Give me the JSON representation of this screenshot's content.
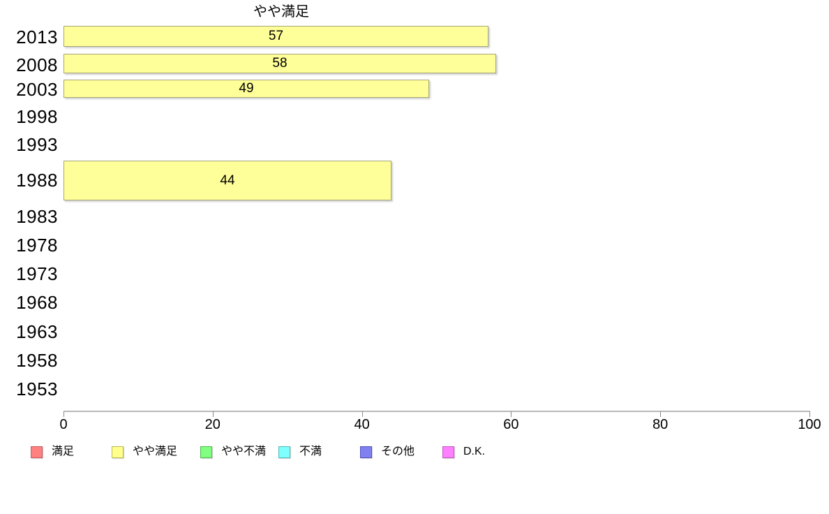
{
  "chart_data": {
    "type": "bar",
    "orientation": "horizontal",
    "title": "やや満足",
    "series_name": "やや満足",
    "categories": [
      "2013",
      "2008",
      "2003",
      "1998",
      "1993",
      "1988",
      "1983",
      "1978",
      "1973",
      "1968",
      "1963",
      "1958",
      "1953"
    ],
    "values": [
      57,
      58,
      49,
      null,
      null,
      44,
      null,
      null,
      null,
      null,
      null,
      null,
      null
    ],
    "bar_labels": [
      "57",
      "58",
      "49",
      null,
      null,
      "44",
      null,
      null,
      null,
      null,
      null,
      null,
      null
    ],
    "xlim": [
      0,
      100
    ],
    "x_ticks": [
      "0",
      "20",
      "40",
      "60",
      "80",
      "100"
    ],
    "x_tick_values": [
      0,
      20,
      40,
      60,
      80,
      100
    ],
    "grid": false,
    "bar_color": "#FFFF99",
    "bar_border_color": "#A6A67A",
    "axis_color": "#B8B8B8",
    "legend_position": "bottom",
    "legend": [
      {
        "label": "満足",
        "color": "#FF8080",
        "border": "#C85858"
      },
      {
        "label": "やや満足",
        "color": "#FFFF8C",
        "border": "#B8B858"
      },
      {
        "label": "やや不満",
        "color": "#80FF80",
        "border": "#50B850"
      },
      {
        "label": "不満",
        "color": "#80FFFF",
        "border": "#50B8B8"
      },
      {
        "label": "その他",
        "color": "#8080F0",
        "border": "#5050C0"
      },
      {
        "label": "D.K.",
        "color": "#FF80FF",
        "border": "#C058C0"
      }
    ]
  }
}
